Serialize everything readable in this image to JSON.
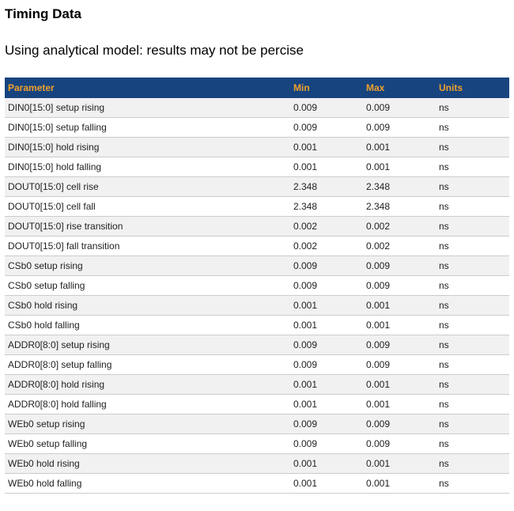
{
  "page": {
    "title": "Timing Data",
    "subtitle": "Using analytical model: results may not be percise"
  },
  "table": {
    "columns": [
      "Parameter",
      "Min",
      "Max",
      "Units"
    ],
    "rows": [
      {
        "parameter": "DIN0[15:0] setup rising",
        "min": "0.009",
        "max": "0.009",
        "units": "ns"
      },
      {
        "parameter": "DIN0[15:0] setup falling",
        "min": "0.009",
        "max": "0.009",
        "units": "ns"
      },
      {
        "parameter": "DIN0[15:0] hold rising",
        "min": "0.001",
        "max": "0.001",
        "units": "ns"
      },
      {
        "parameter": "DIN0[15:0] hold falling",
        "min": "0.001",
        "max": "0.001",
        "units": "ns"
      },
      {
        "parameter": "DOUT0[15:0] cell rise",
        "min": "2.348",
        "max": "2.348",
        "units": "ns"
      },
      {
        "parameter": "DOUT0[15:0] cell fall",
        "min": "2.348",
        "max": "2.348",
        "units": "ns"
      },
      {
        "parameter": "DOUT0[15:0] rise transition",
        "min": "0.002",
        "max": "0.002",
        "units": "ns"
      },
      {
        "parameter": "DOUT0[15:0] fall transition",
        "min": "0.002",
        "max": "0.002",
        "units": "ns"
      },
      {
        "parameter": "CSb0 setup rising",
        "min": "0.009",
        "max": "0.009",
        "units": "ns"
      },
      {
        "parameter": "CSb0 setup falling",
        "min": "0.009",
        "max": "0.009",
        "units": "ns"
      },
      {
        "parameter": "CSb0 hold rising",
        "min": "0.001",
        "max": "0.001",
        "units": "ns"
      },
      {
        "parameter": "CSb0 hold falling",
        "min": "0.001",
        "max": "0.001",
        "units": "ns"
      },
      {
        "parameter": "ADDR0[8:0] setup rising",
        "min": "0.009",
        "max": "0.009",
        "units": "ns"
      },
      {
        "parameter": "ADDR0[8:0] setup falling",
        "min": "0.009",
        "max": "0.009",
        "units": "ns"
      },
      {
        "parameter": "ADDR0[8:0] hold rising",
        "min": "0.001",
        "max": "0.001",
        "units": "ns"
      },
      {
        "parameter": "ADDR0[8:0] hold falling",
        "min": "0.001",
        "max": "0.001",
        "units": "ns"
      },
      {
        "parameter": "WEb0 setup rising",
        "min": "0.009",
        "max": "0.009",
        "units": "ns"
      },
      {
        "parameter": "WEb0 setup falling",
        "min": "0.009",
        "max": "0.009",
        "units": "ns"
      },
      {
        "parameter": "WEb0 hold rising",
        "min": "0.001",
        "max": "0.001",
        "units": "ns"
      },
      {
        "parameter": "WEb0 hold falling",
        "min": "0.001",
        "max": "0.001",
        "units": "ns"
      }
    ]
  },
  "colors": {
    "header_bg": "#17447f",
    "header_text": "#efa02e",
    "row_alt_bg": "#f1f1f1",
    "row_border": "#cccccc",
    "cell_text": "#1f1f1f"
  }
}
